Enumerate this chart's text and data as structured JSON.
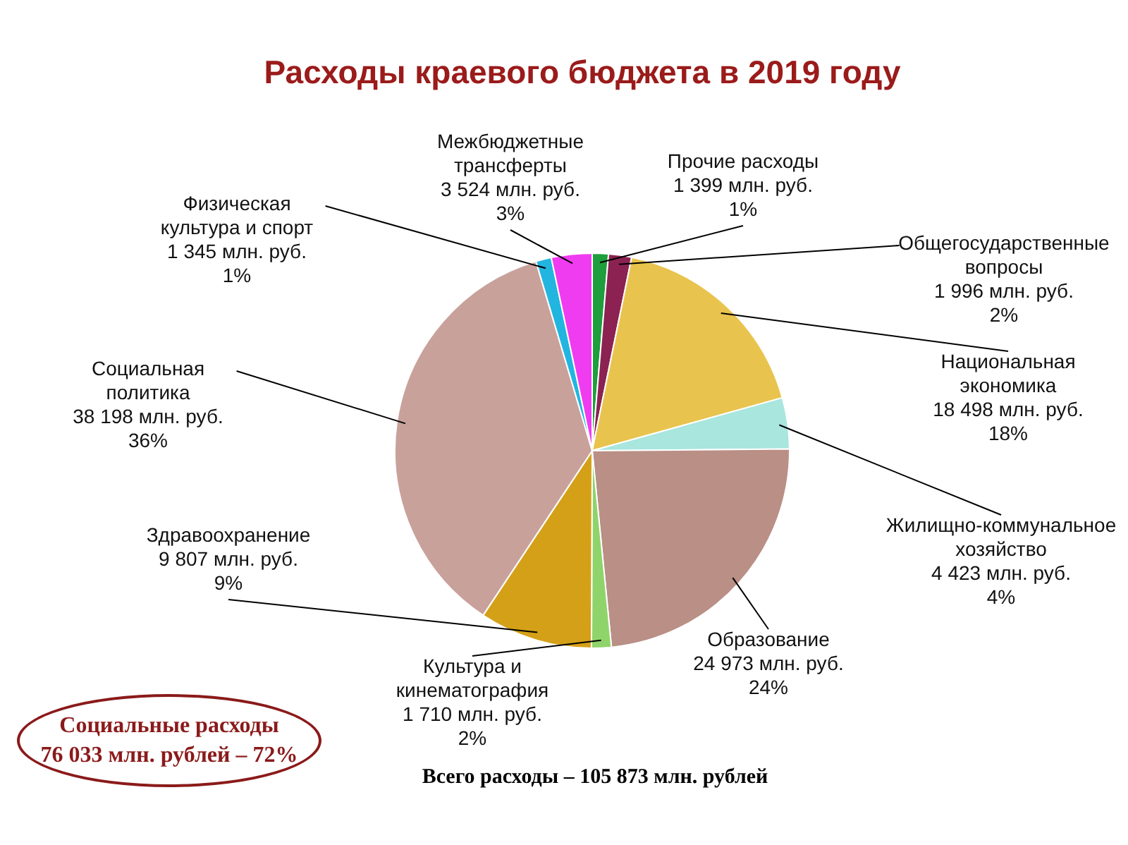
{
  "chart_data": {
    "type": "pie",
    "title": "Расходы краевого бюджета в 2019 году",
    "categories": [
      "Прочие расходы",
      "Общегосударственные вопросы",
      "Национальная экономика",
      "Жилищно-коммунальное хозяйство",
      "Образование",
      "Культура и кинематография",
      "Здравоохранение",
      "Социальная политика",
      "Физическая культура и спорт",
      "Межбюджетные трансферты"
    ],
    "values": [
      1399,
      1996,
      18498,
      4423,
      24973,
      1710,
      9807,
      38198,
      1345,
      3524
    ],
    "value_labels": [
      "1 399 млн. руб.\n1%",
      "1 996 млн. руб.\n2%",
      "18 498 млн. руб.\n18%",
      "4 423 млн. руб.\n4%",
      "24 973 млн. руб.\n24%",
      "1 710 млн. руб.\n2%",
      "9 807 млн. руб.\n9%",
      "38 198 млн. руб.\n36%",
      "1 345 млн. руб.\n1%",
      "3 524 млн. руб.\n3%"
    ],
    "colors": [
      "#1e9e3c",
      "#8b2252",
      "#e8c44e",
      "#a8e6de",
      "#b98f86",
      "#8fd46a",
      "#d4a017",
      "#c9a19b",
      "#22b5e0",
      "#f03cf0"
    ],
    "annotations": [
      "Социальные расходы\n76 033 млн. рублей – 72%",
      "Всего расходы – 105 873 млн. рублей"
    ]
  }
}
